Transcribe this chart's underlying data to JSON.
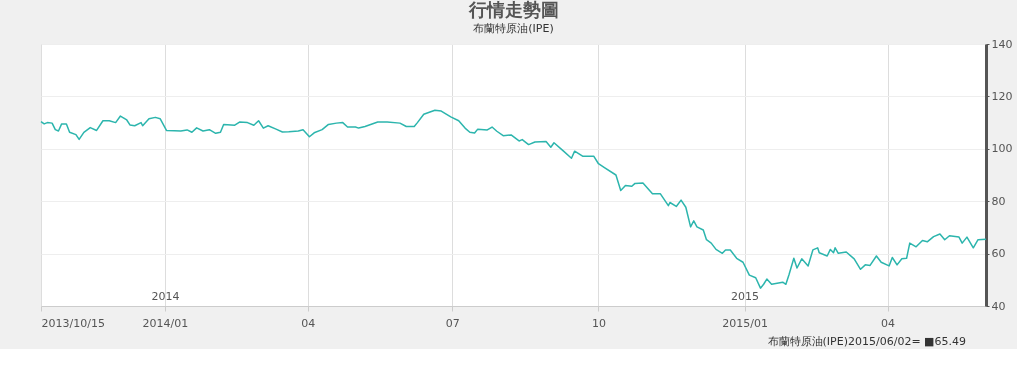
{
  "chart_data": {
    "type": "line",
    "title": "行情走勢圖",
    "subtitle": "布蘭特原油(IPE)",
    "x": [
      "2013-10-15",
      "2013-10-17",
      "2013-10-19",
      "2013-10-22",
      "2013-10-24",
      "2013-10-26",
      "2013-10-28",
      "2013-10-31",
      "2013-11-02",
      "2013-11-06",
      "2013-11-08",
      "2013-11-11",
      "2013-11-15",
      "2013-11-19",
      "2013-11-23",
      "2013-11-27",
      "2013-12-01",
      "2013-12-04",
      "2013-12-08",
      "2013-12-10",
      "2013-12-13",
      "2013-12-17",
      "2013-12-18",
      "2013-12-22",
      "2013-12-26",
      "2013-12-29",
      "2014-01-02",
      "2014-01-07",
      "2014-01-11",
      "2014-01-15",
      "2014-01-18",
      "2014-01-21",
      "2014-01-25",
      "2014-01-29",
      "2014-02-02",
      "2014-02-05",
      "2014-02-07",
      "2014-02-14",
      "2014-02-17",
      "2014-02-22",
      "2014-02-26",
      "2014-03-01",
      "2014-03-04",
      "2014-03-07",
      "2014-03-12",
      "2014-03-16",
      "2014-03-20",
      "2014-03-26",
      "2014-03-29",
      "2014-04-02",
      "2014-04-05",
      "2014-04-10",
      "2014-04-14",
      "2014-04-19",
      "2014-04-23",
      "2014-04-26",
      "2014-05-01",
      "2014-05-03",
      "2014-05-07",
      "2014-05-15",
      "2014-05-21",
      "2014-05-29",
      "2014-06-02",
      "2014-06-07",
      "2014-06-09",
      "2014-06-13",
      "2014-06-20",
      "2014-06-24",
      "2014-06-30",
      "2014-07-05",
      "2014-07-09",
      "2014-07-12",
      "2014-07-15",
      "2014-07-17",
      "2014-07-23",
      "2014-07-26",
      "2014-07-29",
      "2014-08-02",
      "2014-08-07",
      "2014-08-12",
      "2014-08-14",
      "2014-08-18",
      "2014-08-22",
      "2014-08-29",
      "2014-09-01",
      "2014-09-03",
      "2014-09-09",
      "2014-09-14",
      "2014-09-16",
      "2014-09-21",
      "2014-09-28",
      "2014-10-01",
      "2014-10-05",
      "2014-10-12",
      "2014-10-15",
      "2014-10-18",
      "2014-10-22",
      "2014-10-24",
      "2014-10-29",
      "2014-11-04",
      "2014-11-09",
      "2014-11-14",
      "2014-11-15",
      "2014-11-19",
      "2014-11-22",
      "2014-11-25",
      "2014-11-28",
      "2014-11-30",
      "2014-12-02",
      "2014-12-06",
      "2014-12-08",
      "2014-12-11",
      "2014-12-14",
      "2014-12-18",
      "2014-12-20",
      "2014-12-23",
      "2014-12-27",
      "2014-12-31",
      "2015-01-04",
      "2015-01-08",
      "2015-01-11",
      "2015-01-13",
      "2015-01-15",
      "2015-01-18",
      "2015-01-25",
      "2015-01-27",
      "2015-01-29",
      "2015-02-01",
      "2015-02-03",
      "2015-02-06",
      "2015-02-10",
      "2015-02-13",
      "2015-02-16",
      "2015-02-17",
      "2015-02-22",
      "2015-02-24",
      "2015-02-26",
      "2015-02-27",
      "2015-03-01",
      "2015-03-06",
      "2015-03-11",
      "2015-03-15",
      "2015-03-18",
      "2015-03-21",
      "2015-03-25",
      "2015-03-28",
      "2015-04-02",
      "2015-04-04",
      "2015-04-07",
      "2015-04-10",
      "2015-04-13",
      "2015-04-15",
      "2015-04-19",
      "2015-04-23",
      "2015-04-26",
      "2015-04-30",
      "2015-05-04",
      "2015-05-07",
      "2015-05-10",
      "2015-05-16",
      "2015-05-18",
      "2015-05-21",
      "2015-05-25",
      "2015-05-28",
      "2015-06-02"
    ],
    "series": [
      {
        "color": "#2cb5ad",
        "values": [
          110.4,
          109.5,
          110,
          109.8,
          107.3,
          106.8,
          109.5,
          109.5,
          106.3,
          105.4,
          103.6,
          106.3,
          108.1,
          107,
          110.7,
          110.7,
          110,
          112.5,
          111,
          109.1,
          108.8,
          110,
          108.8,
          111.5,
          112,
          111.5,
          107,
          106.9,
          106.8,
          107.2,
          106.3,
          108,
          106.8,
          107.3,
          105.9,
          106.3,
          109.3,
          109,
          110.2,
          110,
          109,
          110.7,
          107.9,
          108.8,
          107.5,
          106.4,
          106.5,
          106.8,
          107.3,
          104.6,
          106.1,
          107.3,
          109.3,
          109.8,
          110,
          108.3,
          108.3,
          107.9,
          108.5,
          110.2,
          110.2,
          109.8,
          108.5,
          108.5,
          110,
          113.2,
          114.7,
          114.4,
          112.2,
          110.7,
          107.9,
          106.3,
          106,
          107.5,
          107.2,
          108.3,
          106.7,
          105,
          105.3,
          103,
          103.5,
          101.6,
          102.6,
          102.8,
          100.6,
          102.3,
          99.1,
          96.4,
          99.1,
          97.2,
          97.2,
          94.3,
          92.7,
          90,
          84.1,
          86,
          85.7,
          86.8,
          86.9,
          82.8,
          82.8,
          78.3,
          79.5,
          78,
          80.4,
          77.7,
          70.2,
          72.5,
          70.2,
          69,
          65.3,
          64,
          61.6,
          60.1,
          61.4,
          61.4,
          58.2,
          56.7,
          51.8,
          50.8,
          46.8,
          48.3,
          50.3,
          48.3,
          49.1,
          48.3,
          52,
          58.2,
          54.5,
          58,
          55.3,
          61.4,
          62.2,
          60.3,
          59.1,
          61.6,
          60.3,
          62.2,
          60.1,
          60.6,
          58,
          54,
          55.7,
          55.5,
          59.1,
          56.7,
          55.3,
          58.5,
          55.7,
          58,
          58.2,
          64,
          62.6,
          65,
          64.5,
          66.5,
          67.5,
          65.3,
          66.8,
          66.3,
          64,
          66.3,
          62.2,
          65.3,
          65.49
        ]
      }
    ],
    "xlim": [
      "2013-10-15",
      "2015-06-02"
    ],
    "xticks": [
      {
        "value": "2013-10-15",
        "label": "2013/10/15"
      },
      {
        "value": "2014-01-01",
        "label": "2014/01"
      },
      {
        "value": "2014-04-01",
        "label": "04"
      },
      {
        "value": "2014-07-01",
        "label": "07"
      },
      {
        "value": "2014-10-01",
        "label": "10"
      },
      {
        "value": "2015-01-01",
        "label": "2015/01"
      },
      {
        "value": "2015-04-01",
        "label": "04"
      }
    ],
    "ylim": [
      40,
      140
    ],
    "yticks": [
      40,
      60,
      80,
      100,
      120,
      140
    ],
    "grid": true,
    "x2lim": [
      "2013-10-15",
      "2015-06-02"
    ],
    "x2ticks": [
      {
        "value": "2014-01-01",
        "label": "2014"
      },
      {
        "value": "2015-01-01",
        "label": "2015"
      }
    ],
    "annotations": [
      "布蘭特原油(IPE)2015/06/02= ■65.49"
    ]
  }
}
